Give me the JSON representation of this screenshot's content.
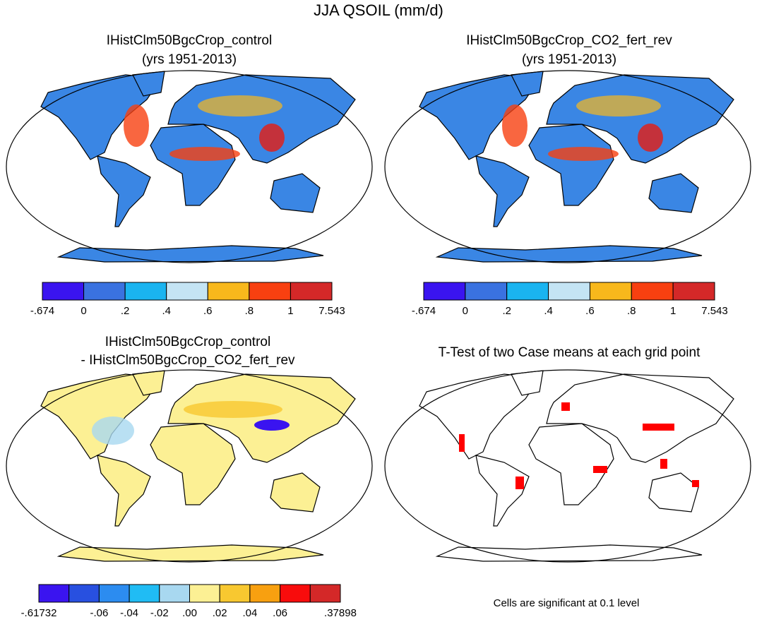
{
  "title": "JJA QSOIL (mm/d)",
  "panels": [
    {
      "title_lines": [
        "IHistClm50BgcCrop_control",
        "(yrs 1951-2013)"
      ],
      "colorbar": {
        "colors": [
          "#3a14f0",
          "#3a72e0",
          "#1ab4f0",
          "#c4e4f4",
          "#f8b81c",
          "#f84010",
          "#d42828"
        ],
        "labels": [
          "-.674",
          "0",
          ".2",
          ".4",
          ".6",
          ".8",
          "1",
          "7.543"
        ]
      }
    },
    {
      "title_lines": [
        "IHistClm50BgcCrop_CO2_fert_rev",
        "(yrs 1951-2013)"
      ],
      "colorbar": {
        "colors": [
          "#3a14f0",
          "#3a72e0",
          "#1ab4f0",
          "#c4e4f4",
          "#f8b81c",
          "#f84010",
          "#d42828"
        ],
        "labels": [
          "-.674",
          "0",
          ".2",
          ".4",
          ".6",
          ".8",
          "1",
          "7.543"
        ]
      }
    },
    {
      "title_lines": [
        "IHistClm50BgcCrop_control",
        "- IHistClm50BgcCrop_CO2_fert_rev"
      ],
      "colorbar": {
        "colors": [
          "#3a14f0",
          "#2850e0",
          "#2c8cf0",
          "#20bcf4",
          "#a8d8f0",
          "#fcf094",
          "#f8c830",
          "#f8a010",
          "#f80c0c",
          "#d42828"
        ],
        "labels": [
          "-.61732",
          null,
          "-.06",
          "-.04",
          "-.02",
          ".00",
          ".02",
          ".04",
          ".06",
          null,
          ".37898"
        ]
      }
    },
    {
      "title_lines": [
        "T-Test of two Case means at each grid point"
      ],
      "note": "Cells are significant at 0.1 level"
    }
  ]
}
